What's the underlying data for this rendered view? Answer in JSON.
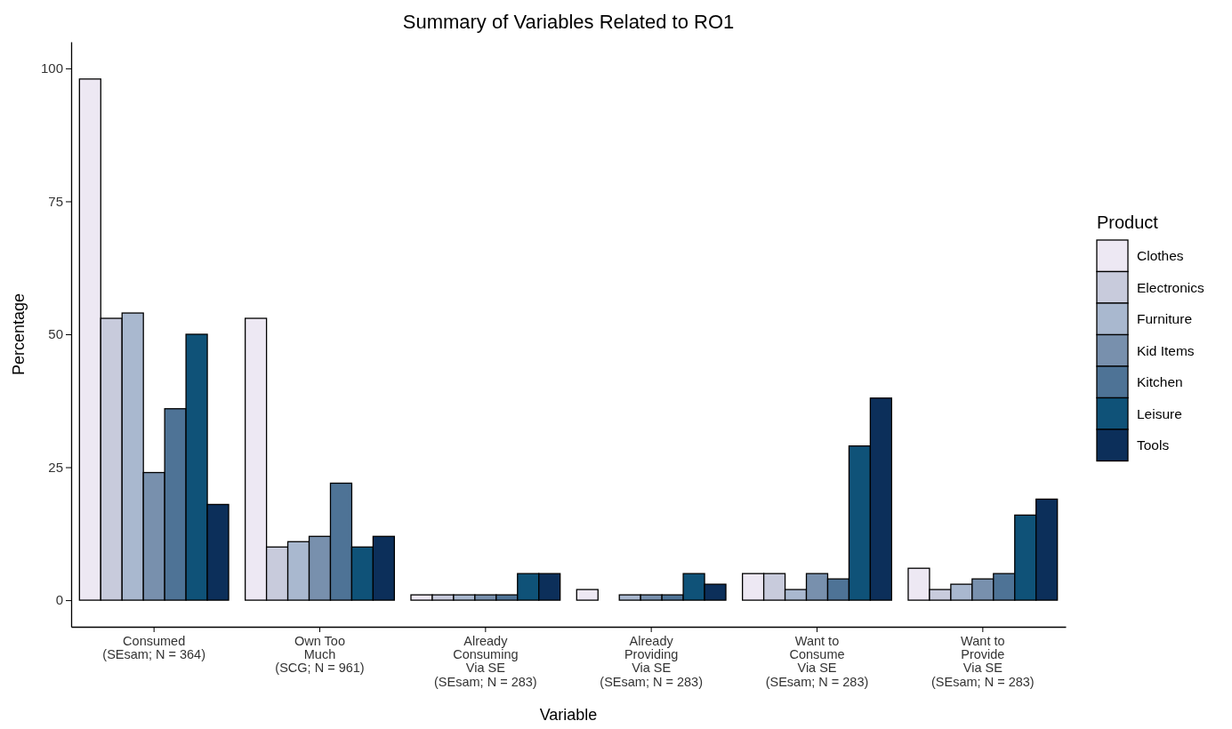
{
  "chart_data": {
    "type": "bar",
    "title": "Summary of Variables Related to RO1",
    "xlabel": "Variable",
    "ylabel": "Percentage",
    "legend_title": "Product",
    "legend": "right",
    "grid": false,
    "categories": [
      "Consumed\n(SEsam; N = 364)",
      "Own Too\nMuch\n(SCG; N = 961)",
      "Already\nConsuming\nVia SE\n(SEsam; N = 283)",
      "Already\nProviding\nVia SE\n(SEsam; N = 283)",
      "Want to\nConsume\nVia SE\n(SEsam; N = 283)",
      "Want to\nProvide\nVia SE\n(SEsam; N = 283)"
    ],
    "ylim": [
      -5,
      105
    ],
    "yticks": [
      0,
      25,
      50,
      75,
      100
    ],
    "series": [
      {
        "name": "Clothes",
        "color": "#ede8f3",
        "values": [
          98,
          53,
          1,
          2,
          5,
          6
        ]
      },
      {
        "name": "Electronics",
        "color": "#c8cbdc",
        "values": [
          53,
          10,
          1,
          0,
          5,
          2
        ]
      },
      {
        "name": "Furniture",
        "color": "#a9b8cf",
        "values": [
          54,
          11,
          1,
          1,
          2,
          3
        ]
      },
      {
        "name": "Kid Items",
        "color": "#7890ad",
        "values": [
          24,
          12,
          1,
          1,
          5,
          4
        ]
      },
      {
        "name": "Kitchen",
        "color": "#4e7396",
        "values": [
          36,
          22,
          1,
          1,
          4,
          5
        ]
      },
      {
        "name": "Leisure",
        "color": "#0f5278",
        "values": [
          50,
          10,
          5,
          5,
          29,
          16
        ]
      },
      {
        "name": "Tools",
        "color": "#0c2f5a",
        "values": [
          18,
          12,
          5,
          3,
          38,
          19
        ]
      }
    ]
  }
}
